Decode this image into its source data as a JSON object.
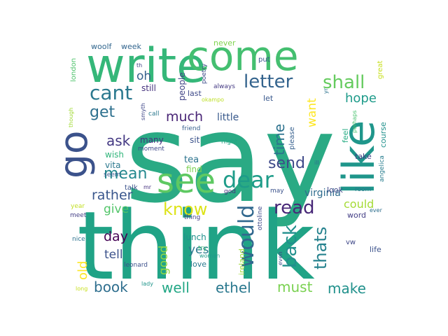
{
  "word_cloud": {
    "words": [
      {
        "text": "say",
        "color": "#2aaa84"
      },
      {
        "text": "think",
        "color": "#20a386"
      },
      {
        "text": "write",
        "color": "#35b779"
      },
      {
        "text": "come",
        "color": "#44bf70"
      },
      {
        "text": "like",
        "color": "#1f968b"
      },
      {
        "text": "go",
        "color": "#3b528b"
      },
      {
        "text": "see",
        "color": "#5ec962"
      },
      {
        "text": "dear",
        "color": "#1e9c89"
      },
      {
        "text": "cant",
        "color": "#2a788e"
      },
      {
        "text": "letter",
        "color": "#33638d"
      },
      {
        "text": "shall",
        "color": "#65cb5e"
      },
      {
        "text": "would",
        "color": "#31688e"
      },
      {
        "text": "get",
        "color": "#2d708e"
      },
      {
        "text": "know",
        "color": "#dde318"
      },
      {
        "text": "read",
        "color": "#482878"
      },
      {
        "text": "back",
        "color": "#218f8d"
      },
      {
        "text": "thats",
        "color": "#26828e"
      },
      {
        "text": "mean",
        "color": "#23888e"
      },
      {
        "text": "send",
        "color": "#3e4989"
      },
      {
        "text": "ask",
        "color": "#443983"
      },
      {
        "text": "much",
        "color": "#482475"
      },
      {
        "text": "time",
        "color": "#2c728e"
      },
      {
        "text": "hope",
        "color": "#1e9b8a"
      },
      {
        "text": "want",
        "color": "#fde725"
      },
      {
        "text": "oh",
        "color": "#35608d"
      },
      {
        "text": "well",
        "color": "#22a785"
      },
      {
        "text": "ethel",
        "color": "#2a788e"
      },
      {
        "text": "must",
        "color": "#7ad151"
      },
      {
        "text": "make",
        "color": "#21918c"
      },
      {
        "text": "book",
        "color": "#2e6e8e"
      },
      {
        "text": "old",
        "color": "#fde725"
      },
      {
        "text": "rather",
        "color": "#39568c"
      },
      {
        "text": "day",
        "color": "#440154"
      },
      {
        "text": "give",
        "color": "#52c569"
      },
      {
        "text": "tell",
        "color": "#3b528b"
      },
      {
        "text": "good",
        "color": "#8fd744"
      },
      {
        "text": "yes",
        "color": "#2a788e"
      },
      {
        "text": "could",
        "color": "#a5db36"
      },
      {
        "text": "virginia",
        "color": "#2f6c8e"
      },
      {
        "text": "little",
        "color": "#38598c"
      },
      {
        "text": "people",
        "color": "#414487"
      },
      {
        "text": "still",
        "color": "#46337e"
      },
      {
        "text": "last",
        "color": "#3e4a89"
      },
      {
        "text": "many",
        "color": "#46307e"
      },
      {
        "text": "sit",
        "color": "#3b528b"
      },
      {
        "text": "tea",
        "color": "#2c738e"
      },
      {
        "text": "find",
        "color": "#7ad151"
      },
      {
        "text": "wish",
        "color": "#31b57b"
      },
      {
        "text": "vita",
        "color": "#2a788e"
      },
      {
        "text": "woolf",
        "color": "#31668e"
      },
      {
        "text": "week",
        "color": "#32658e"
      },
      {
        "text": "never",
        "color": "#7fd34e"
      },
      {
        "text": "put",
        "color": "#3a548c"
      },
      {
        "text": "great",
        "color": "#c8e020"
      },
      {
        "text": "london",
        "color": "#4ec36b"
      },
      {
        "text": "poetry",
        "color": "#3e4c8a"
      },
      {
        "text": "always",
        "color": "#443a83"
      },
      {
        "text": "let",
        "color": "#38588c"
      },
      {
        "text": "okampo",
        "color": "#bddf26"
      },
      {
        "text": "th",
        "color": "#414487"
      },
      {
        "text": "smyth",
        "color": "#3f4788"
      },
      {
        "text": "call",
        "color": "#2a788e"
      },
      {
        "text": "friend",
        "color": "#355f8d"
      },
      {
        "text": "night",
        "color": "#21a685"
      },
      {
        "text": "moment",
        "color": "#3f4889"
      },
      {
        "text": "seem",
        "color": "#38598c"
      },
      {
        "text": "talk",
        "color": "#3b528b"
      },
      {
        "text": "mr",
        "color": "#46317e"
      },
      {
        "text": "year",
        "color": "#c2df23"
      },
      {
        "text": "meet",
        "color": "#433e85"
      },
      {
        "text": "thing",
        "color": "#433d84"
      },
      {
        "text": "lunch",
        "color": "#21918c"
      },
      {
        "text": "woman",
        "color": "#1f998a"
      },
      {
        "text": "love",
        "color": "#29798e"
      },
      {
        "text": "leonard",
        "color": "#3c508b"
      },
      {
        "text": "nice",
        "color": "#2c728e"
      },
      {
        "text": "lady",
        "color": "#1f958b"
      },
      {
        "text": "long",
        "color": "#c8e020"
      },
      {
        "text": "ireland",
        "color": "#a0da39"
      },
      {
        "text": "even",
        "color": "#3e4989"
      },
      {
        "text": "ottoline",
        "color": "#3e4989"
      },
      {
        "text": "god",
        "color": "#472e7c"
      },
      {
        "text": "may",
        "color": "#3b528b"
      },
      {
        "text": "try",
        "color": "#38b977"
      },
      {
        "text": "please",
        "color": "#355f8d"
      },
      {
        "text": "perhaps",
        "color": "#48c16e"
      },
      {
        "text": "feel",
        "color": "#25ab82"
      },
      {
        "text": "ill",
        "color": "#2c718e"
      },
      {
        "text": "course",
        "color": "#21918c"
      },
      {
        "text": "take",
        "color": "#424186"
      },
      {
        "text": "angelica",
        "color": "#287d8e"
      },
      {
        "text": "room",
        "color": "#2a788e"
      },
      {
        "text": "look",
        "color": "#3f4889"
      },
      {
        "text": "word",
        "color": "#433e85"
      },
      {
        "text": "ever",
        "color": "#2e6f8e"
      },
      {
        "text": "life",
        "color": "#3b528b"
      },
      {
        "text": "vw",
        "color": "#3f4788"
      },
      {
        "text": "yr",
        "color": "#2c728e"
      },
      {
        "text": "though",
        "color": "#a2da37"
      }
    ]
  }
}
